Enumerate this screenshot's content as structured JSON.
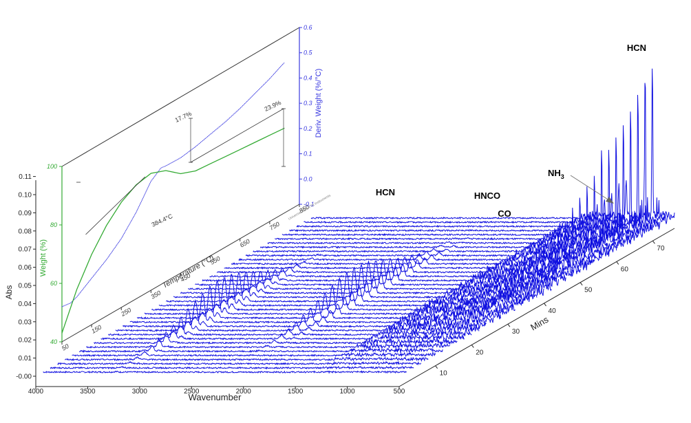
{
  "chart_data": [
    {
      "type": "line",
      "title": "",
      "xlabel": "Wavenumber",
      "ylabel": "Abs",
      "zlabel": "Mins",
      "xlim": [
        4000,
        500
      ],
      "ylim": [
        -0.005,
        0.11
      ],
      "x_ticks": [
        "4000",
        "3500",
        "3000",
        "2500",
        "2000",
        "1500",
        "1000",
        "500"
      ],
      "x_tick_values": [
        4000,
        3500,
        3000,
        2500,
        2000,
        1500,
        1000,
        500
      ],
      "y_ticks": [
        "-0.00",
        "0.01",
        "0.02",
        "0.03",
        "0.04",
        "0.05",
        "0.06",
        "0.07",
        "0.08",
        "0.09",
        "0.10",
        "0.11"
      ],
      "y_tick_values": [
        0,
        0.01,
        0.02,
        0.03,
        0.04,
        0.05,
        0.06,
        0.07,
        0.08,
        0.09,
        0.1,
        0.11
      ],
      "z_ticks": [
        "10",
        "20",
        "30",
        "40",
        "50",
        "60",
        "70"
      ],
      "z_tick_values": [
        10,
        20,
        30,
        40,
        50,
        60,
        70
      ],
      "z_range": [
        0,
        76
      ],
      "num_spectra": 38,
      "line_color": "#1010e0",
      "bands": [
        {
          "name": "HCN",
          "wavenumber": 3300,
          "height": 0.018,
          "width": 60,
          "peak_time": 31
        },
        {
          "name": "HNCO",
          "wavenumber": 2260,
          "height": 0.016,
          "width": 40,
          "peak_time": 38
        },
        {
          "name": "CO",
          "wavenumber": 2140,
          "height": 0.009,
          "width": 35,
          "peak_time": 40
        },
        {
          "name": "NH3",
          "wavenumber": 965,
          "height": 0.02,
          "width": 8,
          "peak_time": 55
        },
        {
          "name": "HCN",
          "wavenumber": 713,
          "height": 0.09,
          "width": 6,
          "peak_time": 76
        }
      ],
      "annotations": [
        {
          "text": "HCN",
          "sub": ""
        },
        {
          "text": "HNCO",
          "sub": ""
        },
        {
          "text": "CO",
          "sub": ""
        },
        {
          "text": "NH",
          "sub": "3"
        },
        {
          "text": "HCN",
          "sub": ""
        }
      ]
    },
    {
      "type": "line",
      "title": "",
      "xlabel": "Temperature (°C)",
      "ylabel_left": "Weight (%)",
      "ylabel_right": "Deriv. Weight (%/°C)",
      "xlim": [
        50,
        850
      ],
      "ylim_left": [
        40,
        100
      ],
      "ylim_right": [
        -0.1,
        0.6
      ],
      "x_ticks": [
        "50",
        "150",
        "250",
        "350",
        "450",
        "550",
        "650",
        "750",
        "850"
      ],
      "x_tick_values": [
        50,
        150,
        250,
        350,
        450,
        550,
        650,
        750,
        850
      ],
      "y_left_ticks": [
        "40",
        "60",
        "80",
        "100"
      ],
      "y_left_tick_values": [
        40,
        60,
        80,
        100
      ],
      "y_right_ticks": [
        "-0.1",
        "0.0",
        "0.1",
        "0.2",
        "0.3",
        "0.4",
        "0.5",
        "0.6"
      ],
      "y_right_tick_values": [
        -0.1,
        0.0,
        0.1,
        0.2,
        0.3,
        0.4,
        0.5,
        0.6
      ],
      "weight_color": "#33aa33",
      "deriv_color": "#3a3ae0",
      "weight_series": {
        "name": "Weight (%)",
        "x": [
          50,
          100,
          150,
          200,
          250,
          300,
          350,
          400,
          450,
          500,
          550,
          600,
          650,
          700,
          750,
          800
        ],
        "values": [
          43,
          55,
          64,
          71,
          76,
          79,
          80,
          78,
          74,
          72,
          71.5,
          71,
          70.5,
          70,
          69.5,
          69
        ]
      },
      "deriv_series": {
        "name": "Deriv. Weight (%/°C)",
        "x": [
          50,
          80,
          100,
          150,
          200,
          250,
          300,
          350,
          384,
          400,
          450,
          500,
          550,
          600,
          650,
          700,
          750,
          790,
          800
        ],
        "values": [
          0.04,
          0.035,
          0.045,
          0.085,
          0.125,
          0.175,
          0.245,
          0.335,
          0.365,
          0.362,
          0.36,
          0.37,
          0.385,
          0.4,
          0.42,
          0.445,
          0.47,
          0.495,
          0.5
        ]
      },
      "peak_label": "384.4°C",
      "peak_temp": 384.4,
      "step_labels": [
        "17.7%",
        "23.9%"
      ],
      "steps": [
        {
          "label": "17.7%",
          "x_start": 130,
          "x_end": 330
        },
        {
          "label": "23.9%",
          "x_end": 790
        }
      ],
      "watermark": "Universal V4.5A TA Instruments"
    }
  ]
}
